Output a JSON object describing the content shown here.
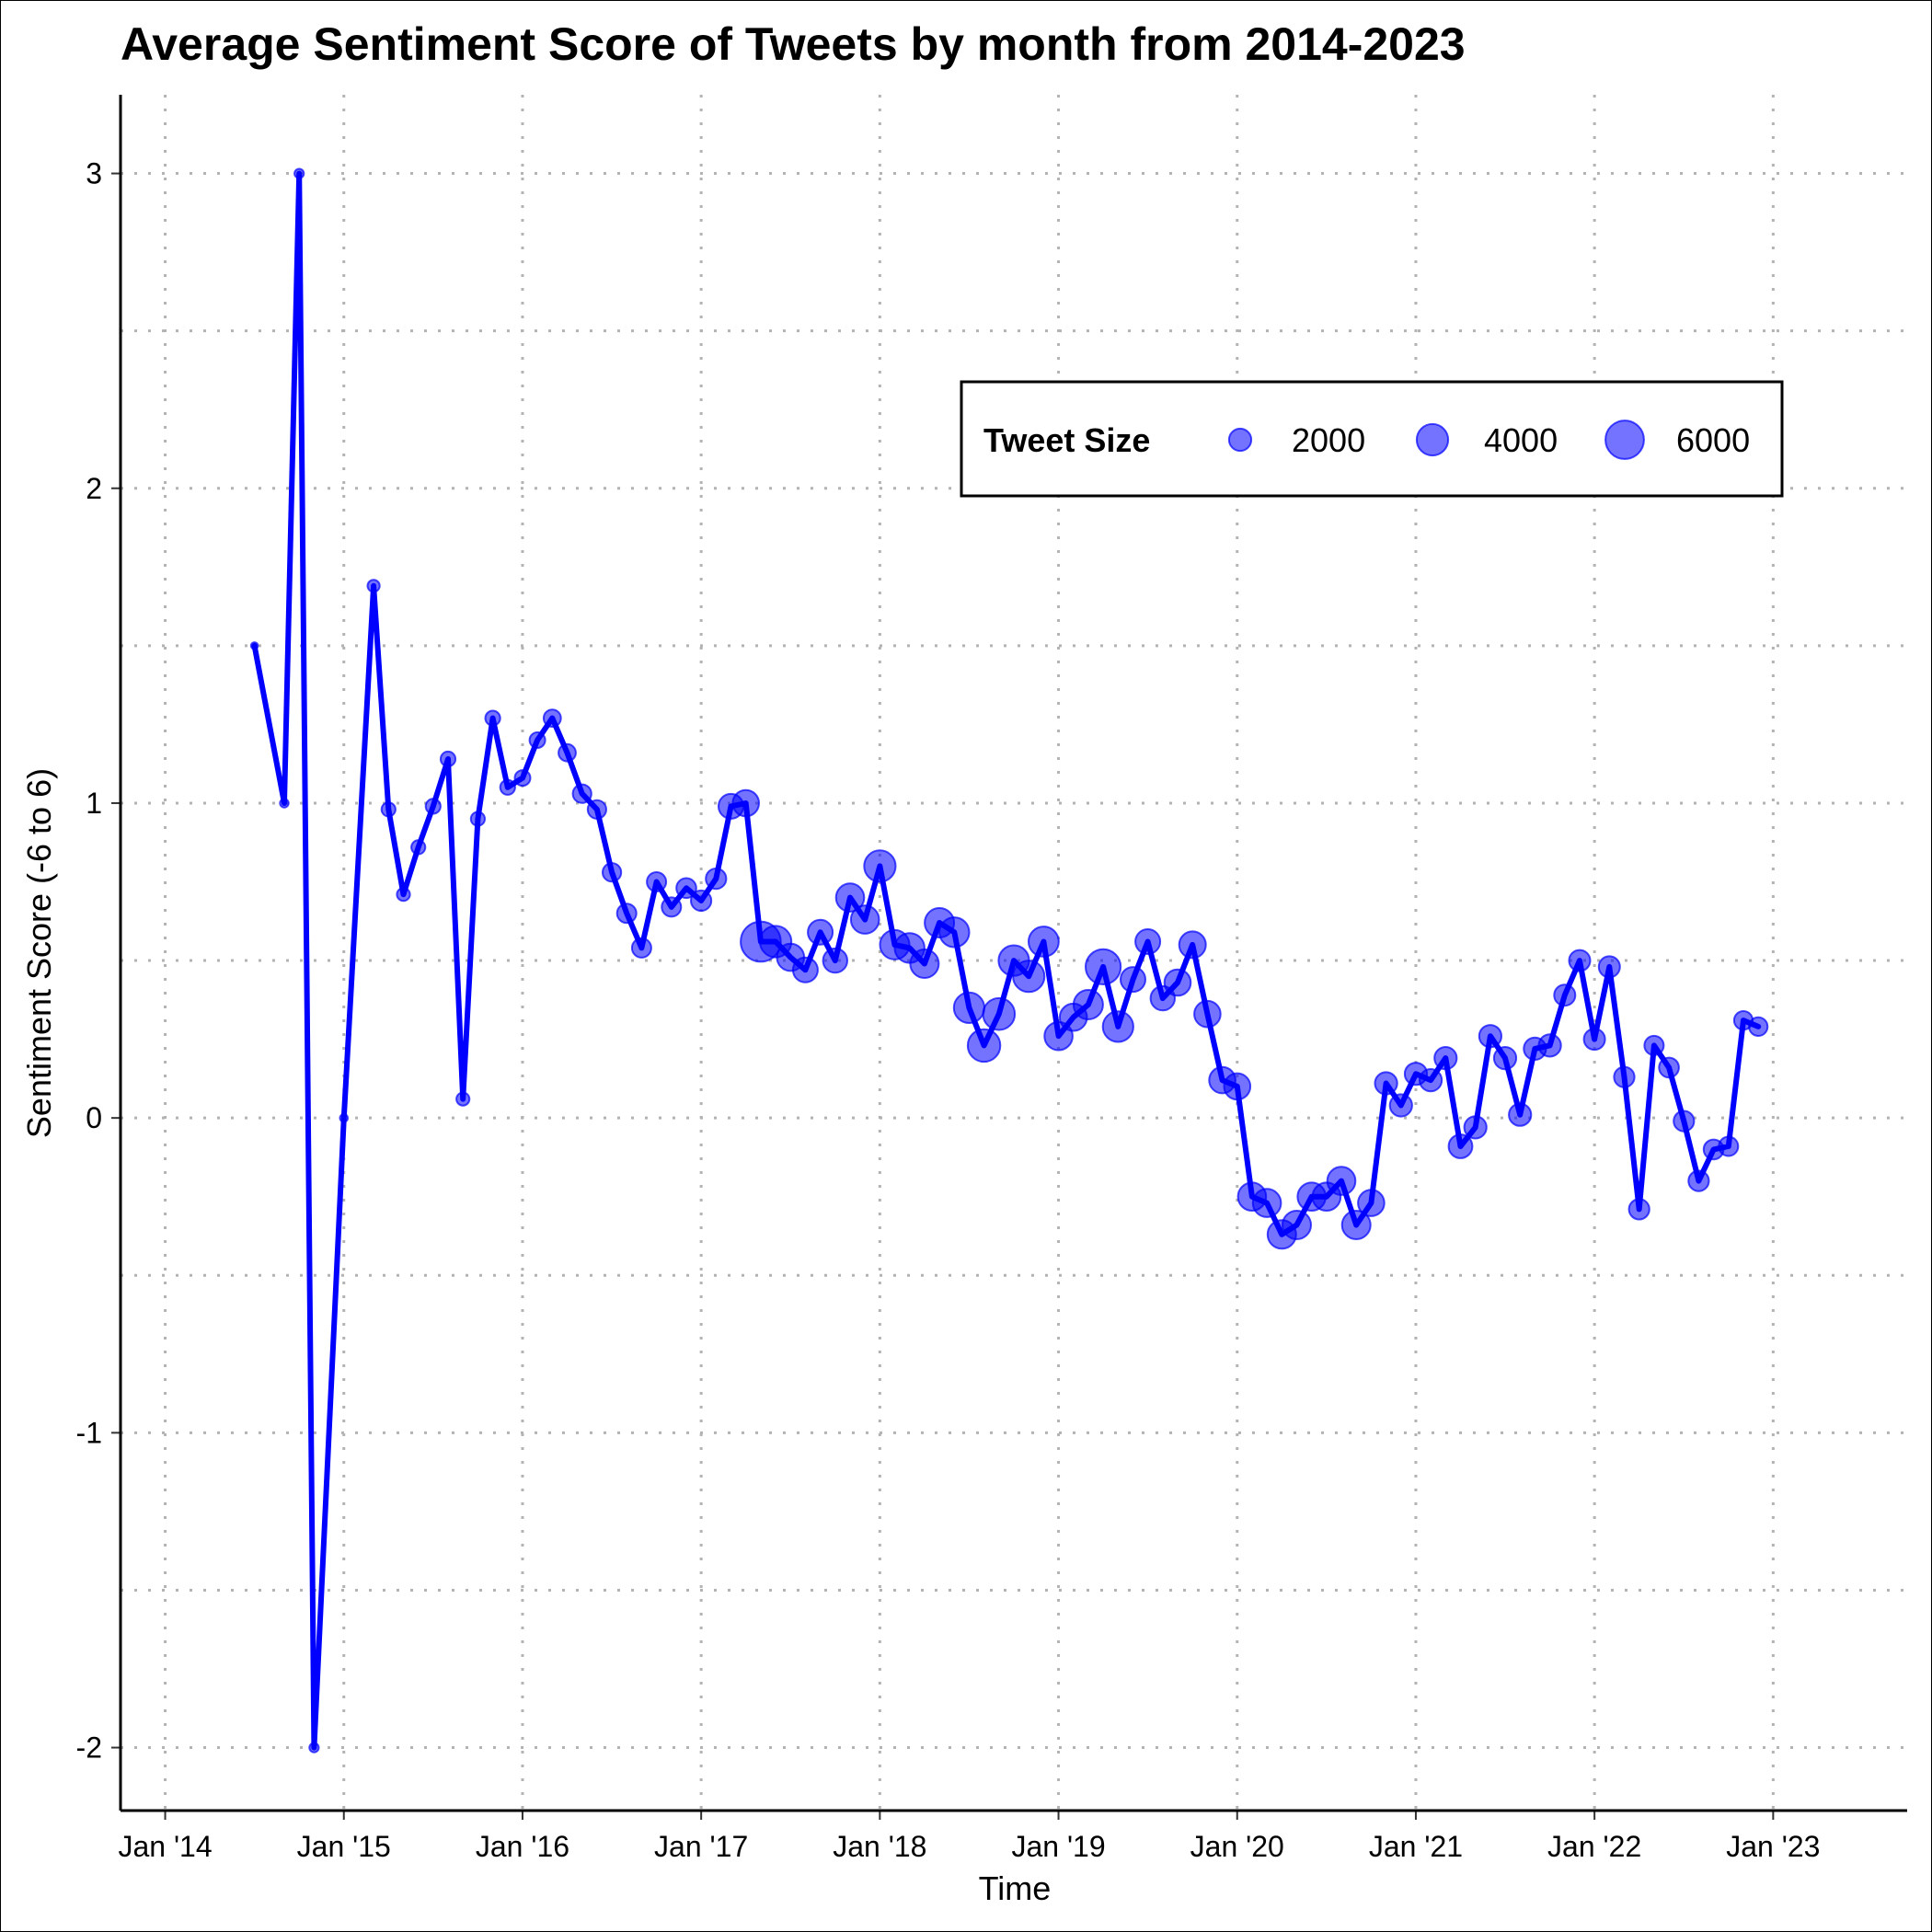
{
  "chart_data": {
    "type": "scatter",
    "title": "Average Sentiment Score of Tweets by month from 2014-2023",
    "xlabel": "Time",
    "ylabel": "Sentiment Score (-6 to 6)",
    "x_range": [
      "2013-10",
      "2023-10"
    ],
    "ylim": [
      -2.2,
      3.25
    ],
    "y_ticks": [
      -2,
      -1,
      0,
      1,
      2,
      3
    ],
    "y_tick_labels": [
      "-2",
      "-1",
      "0",
      "1",
      "2",
      "3"
    ],
    "x_ticks": [
      "2014-01",
      "2015-01",
      "2016-01",
      "2017-01",
      "2018-01",
      "2019-01",
      "2020-01",
      "2021-01",
      "2022-01",
      "2023-01"
    ],
    "x_tick_labels": [
      "Jan '14",
      "Jan '15",
      "Jan '16",
      "Jan '17",
      "Jan '18",
      "Jan '19",
      "Jan '20",
      "Jan '21",
      "Jan '22",
      "Jan '23"
    ],
    "grid": "dotted-major-and-minor",
    "line_color": "#0000ff",
    "point_color": "#0000ff",
    "point_opacity": 0.55,
    "legend": {
      "title": "Tweet Size",
      "placement": "top-right",
      "sizes": [
        2000,
        4000,
        6000
      ],
      "labels": [
        "2000",
        "4000",
        "6000"
      ]
    },
    "series": [
      {
        "x": [
          "2014-07",
          "2014-09",
          "2014-10",
          "2014-11",
          "2015-01",
          "2015-03",
          "2015-04",
          "2015-05",
          "2015-06",
          "2015-07",
          "2015-08",
          "2015-09",
          "2015-10",
          "2015-11",
          "2015-12",
          "2016-01",
          "2016-02",
          "2016-03",
          "2016-04",
          "2016-05",
          "2016-06",
          "2016-07",
          "2016-08",
          "2016-09",
          "2016-10",
          "2016-11",
          "2016-12",
          "2017-01",
          "2017-02",
          "2017-03",
          "2017-04",
          "2017-05",
          "2017-06",
          "2017-07",
          "2017-08",
          "2017-09",
          "2017-10",
          "2017-11",
          "2017-12",
          "2018-01",
          "2018-02",
          "2018-03",
          "2018-04",
          "2018-05",
          "2018-06",
          "2018-07",
          "2018-08",
          "2018-09",
          "2018-10",
          "2018-11",
          "2018-12",
          "2019-01",
          "2019-02",
          "2019-03",
          "2019-04",
          "2019-05",
          "2019-06",
          "2019-07",
          "2019-08",
          "2019-09",
          "2019-10",
          "2019-11",
          "2019-12",
          "2020-01",
          "2020-02",
          "2020-03",
          "2020-04",
          "2020-05",
          "2020-06",
          "2020-07",
          "2020-08",
          "2020-09",
          "2020-10",
          "2020-11",
          "2020-12",
          "2021-01",
          "2021-02",
          "2021-03",
          "2021-04",
          "2021-05",
          "2021-06",
          "2021-07",
          "2021-08",
          "2021-09",
          "2021-10",
          "2021-11",
          "2021-12",
          "2022-01",
          "2022-02",
          "2022-03",
          "2022-04",
          "2022-05",
          "2022-06",
          "2022-07",
          "2022-08",
          "2022-09",
          "2022-10",
          "2022-11",
          "2022-12"
        ],
        "y": [
          1.5,
          1.0,
          3.0,
          -2.0,
          0.0,
          1.69,
          0.98,
          0.71,
          0.86,
          0.99,
          1.14,
          0.06,
          0.95,
          1.27,
          1.05,
          1.08,
          1.2,
          1.27,
          1.16,
          1.03,
          0.98,
          0.78,
          0.65,
          0.54,
          0.75,
          0.67,
          0.73,
          0.69,
          0.76,
          0.99,
          1.0,
          0.56,
          0.56,
          0.51,
          0.47,
          0.59,
          0.5,
          0.7,
          0.63,
          0.8,
          0.55,
          0.54,
          0.49,
          0.62,
          0.59,
          0.35,
          0.23,
          0.33,
          0.5,
          0.45,
          0.56,
          0.26,
          0.32,
          0.36,
          0.48,
          0.29,
          0.44,
          0.56,
          0.38,
          0.43,
          0.55,
          0.33,
          0.12,
          0.1,
          -0.25,
          -0.27,
          -0.37,
          -0.34,
          -0.25,
          -0.25,
          -0.2,
          -0.34,
          -0.27,
          0.11,
          0.04,
          0.14,
          0.12,
          0.19,
          -0.09,
          -0.03,
          0.26,
          0.19,
          0.01,
          0.22,
          0.23,
          0.39,
          0.5,
          0.25,
          0.48,
          0.13,
          -0.29,
          0.23,
          0.16,
          -0.01,
          -0.2,
          -0.1,
          -0.09,
          0.31,
          0.29
        ],
        "size": [
          200,
          300,
          350,
          350,
          250,
          600,
          800,
          700,
          800,
          900,
          900,
          700,
          800,
          900,
          900,
          1000,
          1000,
          1200,
          1200,
          1400,
          1400,
          1400,
          1500,
          1500,
          1500,
          1500,
          1600,
          1700,
          1700,
          2500,
          2800,
          6500,
          4000,
          3000,
          2500,
          2500,
          2400,
          3200,
          3200,
          4000,
          3500,
          3600,
          3300,
          3500,
          3600,
          3800,
          4300,
          4100,
          3800,
          4000,
          3700,
          3200,
          3000,
          3500,
          5000,
          3800,
          2500,
          2500,
          2400,
          2800,
          2900,
          2800,
          2800,
          2800,
          3200,
          3200,
          3300,
          3300,
          3200,
          3200,
          3200,
          3300,
          2800,
          2000,
          2000,
          2000,
          2000,
          2000,
          2300,
          2000,
          2000,
          2000,
          2000,
          2000,
          2000,
          1800,
          1800,
          1800,
          1800,
          1700,
          1700,
          1500,
          1600,
          1700,
          1700,
          1600,
          1500,
          1400,
          1400
        ]
      }
    ]
  }
}
